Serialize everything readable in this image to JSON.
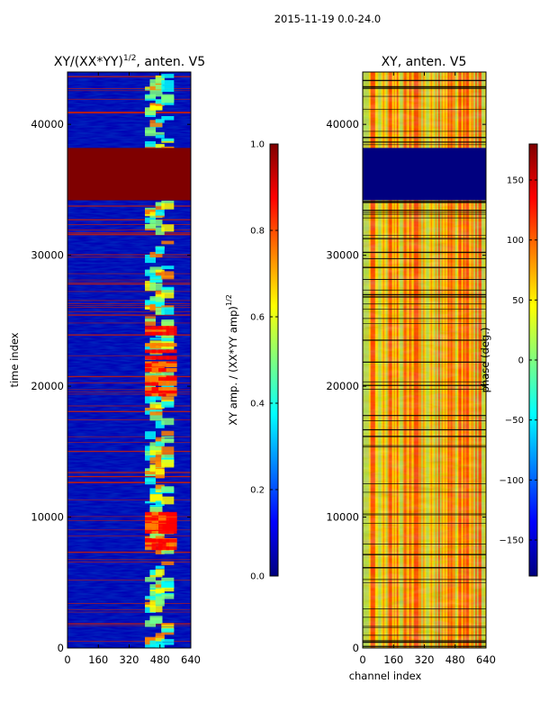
{
  "suptitle": "2015-11-19 0.0-24.0",
  "colors": {
    "jet": [
      "#00007f",
      "#0000ff",
      "#007fff",
      "#00ffff",
      "#7fff7f",
      "#ffff00",
      "#ff7f00",
      "#ff0000",
      "#7f0000"
    ],
    "frame": "#000000"
  },
  "chart_data": [
    {
      "type": "heatmap",
      "title_main": "XY/(XX*YY)",
      "title_sup": "1/2",
      "title_tail": ", anten. V5",
      "xlabel": "",
      "ylabel": "time index",
      "xlim": [
        0,
        640
      ],
      "ylim": [
        0,
        44000
      ],
      "xticks": [
        0,
        160,
        320,
        480,
        640
      ],
      "yticks": [
        0,
        10000,
        20000,
        30000,
        40000
      ],
      "bands": [
        {
          "y0": 34200,
          "y1": 38200,
          "value": 1.0,
          "note": "saturated band"
        }
      ],
      "bright_channels": [
        430,
        460,
        480,
        520
      ],
      "colorbar": {
        "label": "XY amp. / (XX*YY amp)",
        "label_sup": "1/2",
        "range": [
          0.0,
          1.0
        ],
        "ticks": [
          0.0,
          0.2,
          0.4,
          0.6,
          0.8,
          1.0
        ],
        "tick_labels": [
          "0.0",
          "0.2",
          "0.4",
          "0.6",
          "0.8",
          "1.0"
        ]
      }
    },
    {
      "type": "heatmap",
      "title_main": "XY, anten. V5",
      "xlabel": "channel index",
      "ylabel": "",
      "xlim": [
        0,
        640
      ],
      "ylim": [
        0,
        44000
      ],
      "xticks": [
        0,
        160,
        320,
        480,
        640
      ],
      "yticks": [
        0,
        10000,
        20000,
        30000,
        40000
      ],
      "bands": [
        {
          "y0": 34200,
          "y1": 38200,
          "value": -180,
          "note": "flagged band"
        }
      ],
      "colorbar": {
        "label": "phase (deg.)",
        "range": [
          -180,
          180
        ],
        "ticks": [
          -150,
          -100,
          -50,
          0,
          50,
          100,
          150
        ],
        "tick_labels": [
          "−150",
          "−100",
          "−50",
          "0",
          "50",
          "100",
          "150"
        ]
      }
    }
  ]
}
